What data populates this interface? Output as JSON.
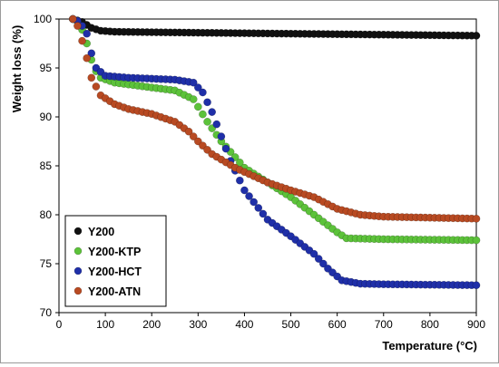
{
  "chart_data": {
    "type": "scatter",
    "title": "",
    "xlabel": "Temperature (°C)",
    "ylabel": "Weight loss (%)",
    "xlim": [
      0,
      900
    ],
    "ylim": [
      70,
      100
    ],
    "xticks": [
      0,
      100,
      200,
      300,
      400,
      500,
      600,
      700,
      800,
      900
    ],
    "yticks": [
      70,
      75,
      80,
      85,
      90,
      95,
      100
    ],
    "grid": false,
    "legend_position": "bottom-left",
    "series": [
      {
        "name": "Y200",
        "color": "#111111",
        "keypoints": [
          [
            30,
            100
          ],
          [
            50,
            99.7
          ],
          [
            70,
            99.1
          ],
          [
            90,
            98.8
          ],
          [
            120,
            98.7
          ],
          [
            200,
            98.65
          ],
          [
            400,
            98.55
          ],
          [
            600,
            98.45
          ],
          [
            800,
            98.35
          ],
          [
            900,
            98.3
          ]
        ]
      },
      {
        "name": "Y200-KTP",
        "color": "#5cc23a",
        "keypoints": [
          [
            30,
            100
          ],
          [
            45,
            99.6
          ],
          [
            60,
            97.5
          ],
          [
            75,
            95.0
          ],
          [
            90,
            94.0
          ],
          [
            120,
            93.5
          ],
          [
            200,
            93.0
          ],
          [
            250,
            92.7
          ],
          [
            290,
            91.8
          ],
          [
            320,
            89.5
          ],
          [
            350,
            87.5
          ],
          [
            400,
            84.8
          ],
          [
            450,
            83.3
          ],
          [
            500,
            81.8
          ],
          [
            550,
            80.0
          ],
          [
            600,
            78.2
          ],
          [
            620,
            77.6
          ],
          [
            700,
            77.5
          ],
          [
            800,
            77.45
          ],
          [
            900,
            77.4
          ]
        ]
      },
      {
        "name": "Y200-HCT",
        "color": "#1f2fa8",
        "keypoints": [
          [
            30,
            100
          ],
          [
            45,
            99.7
          ],
          [
            60,
            98.5
          ],
          [
            70,
            96.5
          ],
          [
            80,
            95.0
          ],
          [
            100,
            94.2
          ],
          [
            150,
            94.0
          ],
          [
            250,
            93.8
          ],
          [
            290,
            93.5
          ],
          [
            310,
            92.5
          ],
          [
            330,
            90.5
          ],
          [
            350,
            88.0
          ],
          [
            370,
            85.5
          ],
          [
            400,
            82.5
          ],
          [
            450,
            79.5
          ],
          [
            500,
            77.8
          ],
          [
            550,
            76.0
          ],
          [
            580,
            74.5
          ],
          [
            610,
            73.3
          ],
          [
            650,
            72.95
          ],
          [
            700,
            72.9
          ],
          [
            800,
            72.85
          ],
          [
            900,
            72.8
          ]
        ]
      },
      {
        "name": "Y200-ATN",
        "color": "#b84a22",
        "keypoints": [
          [
            30,
            100
          ],
          [
            40,
            99.3
          ],
          [
            55,
            97.0
          ],
          [
            70,
            94.0
          ],
          [
            90,
            92.2
          ],
          [
            120,
            91.3
          ],
          [
            150,
            90.8
          ],
          [
            200,
            90.3
          ],
          [
            250,
            89.5
          ],
          [
            280,
            88.5
          ],
          [
            300,
            87.5
          ],
          [
            330,
            86.2
          ],
          [
            380,
            84.8
          ],
          [
            450,
            83.3
          ],
          [
            500,
            82.5
          ],
          [
            550,
            81.8
          ],
          [
            600,
            80.6
          ],
          [
            650,
            80.0
          ],
          [
            700,
            79.8
          ],
          [
            800,
            79.7
          ],
          [
            900,
            79.6
          ]
        ]
      }
    ]
  }
}
